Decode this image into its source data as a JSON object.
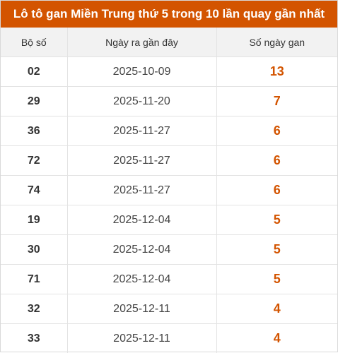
{
  "title": "Lô tô gan Miền Trung thứ 5 trong 10 lần quay gần nhất",
  "headers": [
    "Bộ số",
    "Ngày ra gần đây",
    "Số ngày gan"
  ],
  "rows": [
    {
      "so": "02",
      "ngay": "2025-10-09",
      "gan": "13"
    },
    {
      "so": "29",
      "ngay": "2025-11-20",
      "gan": "7"
    },
    {
      "so": "36",
      "ngay": "2025-11-27",
      "gan": "6"
    },
    {
      "so": "72",
      "ngay": "2025-11-27",
      "gan": "6"
    },
    {
      "so": "74",
      "ngay": "2025-11-27",
      "gan": "6"
    },
    {
      "so": "19",
      "ngay": "2025-12-04",
      "gan": "5"
    },
    {
      "so": "30",
      "ngay": "2025-12-04",
      "gan": "5"
    },
    {
      "so": "71",
      "ngay": "2025-12-04",
      "gan": "5"
    },
    {
      "so": "32",
      "ngay": "2025-12-11",
      "gan": "4"
    },
    {
      "so": "33",
      "ngay": "2025-12-11",
      "gan": "4"
    }
  ],
  "colors": {
    "header_bg": "#d35400",
    "accent": "#d35400",
    "column_header_bg": "#f2f2f2"
  }
}
